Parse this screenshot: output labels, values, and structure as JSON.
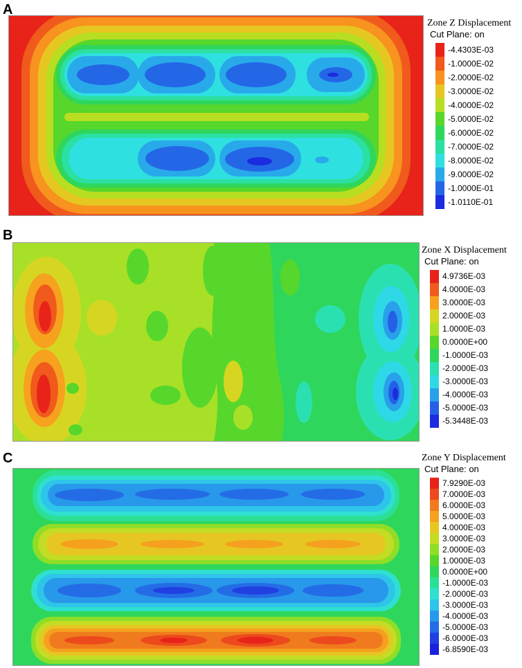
{
  "panels": [
    {
      "letter": "A",
      "legend": {
        "title": "Zone Z Displacement",
        "subtitle": "Cut Plane: on",
        "entries": [
          {
            "label": "-4.4303E-03",
            "color": "#e8231a"
          },
          {
            "label": "-1.0000E-02",
            "color": "#f05a1c"
          },
          {
            "label": "-2.0000E-02",
            "color": "#f7931e"
          },
          {
            "label": "-3.0000E-02",
            "color": "#e6c722"
          },
          {
            "label": "-4.0000E-02",
            "color": "#b8de22"
          },
          {
            "label": "-5.0000E-02",
            "color": "#57d62b"
          },
          {
            "label": "-6.0000E-02",
            "color": "#2fd65c"
          },
          {
            "label": "-7.0000E-02",
            "color": "#2be0a0"
          },
          {
            "label": "-8.0000E-02",
            "color": "#2fe0e0"
          },
          {
            "label": "-9.0000E-02",
            "color": "#28aaea"
          },
          {
            "label": "-1.0000E-01",
            "color": "#2467e6"
          },
          {
            "label": "-1.0110E-01",
            "color": "#1a2be0"
          }
        ]
      }
    },
    {
      "letter": "B",
      "legend": {
        "title": "Zone X Displacement",
        "subtitle": "Cut Plane: on",
        "entries": [
          {
            "label": "4.9736E-03",
            "color": "#e8231a"
          },
          {
            "label": "4.0000E-03",
            "color": "#f05a1c"
          },
          {
            "label": "3.0000E-03",
            "color": "#f7a21e"
          },
          {
            "label": "2.0000E-03",
            "color": "#d6d622"
          },
          {
            "label": "1.0000E-03",
            "color": "#a8e028"
          },
          {
            "label": "0.0000E+00",
            "color": "#57d62b"
          },
          {
            "label": "-1.0000E-03",
            "color": "#2fd65c"
          },
          {
            "label": "-2.0000E-03",
            "color": "#2be0b0"
          },
          {
            "label": "-3.0000E-03",
            "color": "#2fd8e6"
          },
          {
            "label": "-4.0000E-03",
            "color": "#28a0ea"
          },
          {
            "label": "-5.0000E-03",
            "color": "#2460e6"
          },
          {
            "label": "-5.3448E-03",
            "color": "#1a2be0"
          }
        ]
      }
    },
    {
      "letter": "C",
      "legend": {
        "title": "Zone Y Displacement",
        "subtitle": "Cut Plane: on",
        "entries": [
          {
            "label": "7.9290E-03",
            "color": "#e8231a"
          },
          {
            "label": "7.0000E-03",
            "color": "#ec4a1c"
          },
          {
            "label": "6.0000E-03",
            "color": "#f07a1e"
          },
          {
            "label": "5.0000E-03",
            "color": "#f5a01e"
          },
          {
            "label": "4.0000E-03",
            "color": "#e6c622"
          },
          {
            "label": "3.0000E-03",
            "color": "#c4dc24"
          },
          {
            "label": "2.0000E-03",
            "color": "#8ede28"
          },
          {
            "label": "1.0000E-03",
            "color": "#57d62b"
          },
          {
            "label": "0.0000E+00",
            "color": "#2fd65c"
          },
          {
            "label": "-1.0000E-03",
            "color": "#2be094"
          },
          {
            "label": "-2.0000E-03",
            "color": "#2fe0d0"
          },
          {
            "label": "-3.0000E-03",
            "color": "#2fc4ea"
          },
          {
            "label": "-4.0000E-03",
            "color": "#2898ea"
          },
          {
            "label": "-5.0000E-03",
            "color": "#246ce6"
          },
          {
            "label": "-6.0000E-03",
            "color": "#2040e2"
          },
          {
            "label": "-6.8590E-03",
            "color": "#1a22de"
          }
        ]
      }
    }
  ]
}
